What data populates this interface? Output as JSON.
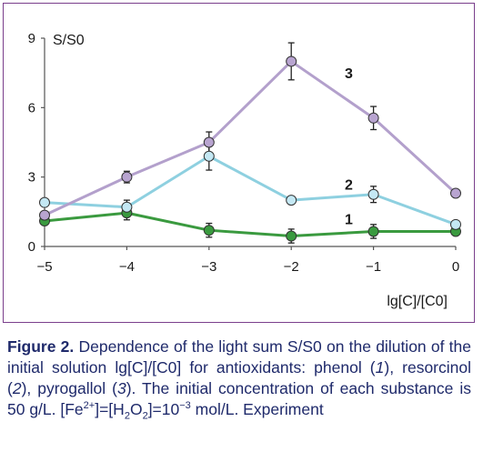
{
  "chart_data": {
    "type": "line",
    "ylabel": "S/S0",
    "xlabel": "lg[C]/[C0]",
    "x": [
      -5,
      -4,
      -3,
      -2,
      -1,
      0
    ],
    "xticks": [
      "−5",
      "−4",
      "−3",
      "−2",
      "−1",
      "0"
    ],
    "yticks": [
      "0",
      "3",
      "6",
      "9"
    ],
    "ytick_values": [
      0,
      3,
      6,
      9
    ],
    "xlim": [
      -5,
      0
    ],
    "ylim": [
      0,
      9
    ],
    "grid": false,
    "series": [
      {
        "name": "1",
        "color": "#3a9a3f",
        "marker_fill": "#3a9a3f",
        "values": [
          1.1,
          1.45,
          0.7,
          0.45,
          0.65,
          0.65
        ],
        "errors": [
          0.15,
          0.3,
          0.3,
          0.3,
          0.3,
          0
        ]
      },
      {
        "name": "2",
        "color": "#8ed0e0",
        "marker_fill": "#c4e8f4",
        "values": [
          1.9,
          1.7,
          3.9,
          2.0,
          2.25,
          0.95
        ],
        "errors": [
          0,
          0.3,
          0.6,
          0,
          0.35,
          0
        ]
      },
      {
        "name": "3",
        "color": "#b3a0cc",
        "marker_fill": "#b8a4d0",
        "values": [
          1.35,
          3.0,
          4.5,
          8.0,
          5.55,
          2.3
        ],
        "errors": [
          0,
          0.25,
          0.45,
          0.8,
          0.5,
          0
        ]
      }
    ]
  },
  "caption": {
    "label": "Figure 2.",
    "text_1": " Dependence of the light sum S/S0 on the dilution of the initial solution lg[C]/[C0] for antioxidants: phenol (",
    "n1": "1",
    "text_2": "), resorcinol (",
    "n2": "2",
    "text_3": "), pyrogallol (",
    "n3": "3",
    "text_4": "). The initial concentration of each substance is 50 g/L. [Fe",
    "sup1": "2+",
    "text_5": "]=[H",
    "sub1": "2",
    "text_6": "O",
    "sub2": "2",
    "text_7": "]=10",
    "sup2": "−3",
    "text_8": " mol/L. Experiment"
  }
}
